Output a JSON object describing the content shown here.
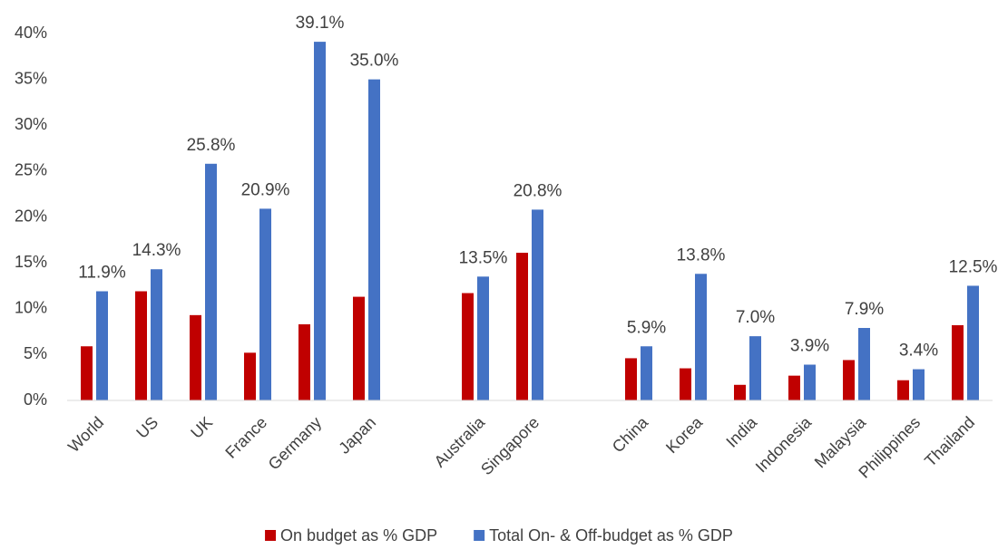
{
  "chart_data": {
    "type": "bar",
    "categories": [
      "World",
      "US",
      "UK",
      "France",
      "Germany",
      "Japan",
      null,
      "Australia",
      "Singapore",
      null,
      "China",
      "Korea",
      "India",
      "Indonesia",
      "Malaysia",
      "Philippines",
      "Thailand"
    ],
    "series": [
      {
        "name": "On budget as % GDP",
        "color": "#c00000",
        "values": [
          5.9,
          11.9,
          9.3,
          5.2,
          8.3,
          11.3,
          null,
          11.7,
          16.1,
          null,
          4.6,
          3.5,
          1.7,
          2.7,
          4.4,
          2.2,
          8.2
        ]
      },
      {
        "name": "Total On- & Off-budget as % GDP",
        "color": "#4472c4",
        "values": [
          11.9,
          14.3,
          25.8,
          20.9,
          39.1,
          35.0,
          null,
          13.5,
          20.8,
          null,
          5.9,
          13.8,
          7.0,
          3.9,
          7.9,
          3.4,
          12.5
        ],
        "value_labels": [
          "11.9%",
          "14.3%",
          "25.8%",
          "20.9%",
          "39.1%",
          "35.0%",
          null,
          "13.5%",
          "20.8%",
          null,
          "5.9%",
          "13.8%",
          "7.0%",
          "3.9%",
          "7.9%",
          "3.4%",
          "12.5%"
        ]
      }
    ],
    "ylim": [
      0,
      40
    ],
    "yticks": [
      {
        "value": 0,
        "label": "0%"
      },
      {
        "value": 5,
        "label": "5%"
      },
      {
        "value": 10,
        "label": "10%"
      },
      {
        "value": 15,
        "label": "15%"
      },
      {
        "value": 20,
        "label": "20%"
      },
      {
        "value": 25,
        "label": "25%"
      },
      {
        "value": 30,
        "label": "30%"
      },
      {
        "value": 35,
        "label": "35%"
      },
      {
        "value": 40,
        "label": "40%"
      }
    ],
    "grid": false,
    "legend": "bottom"
  }
}
